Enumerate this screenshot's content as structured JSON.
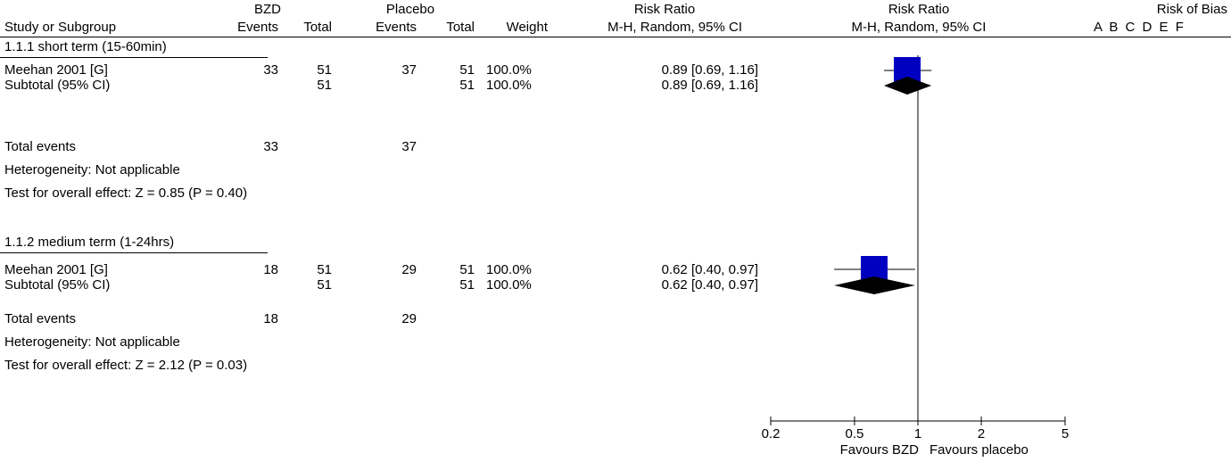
{
  "header": {
    "group_bzd": "BZD",
    "group_placebo": "Placebo",
    "rr_table_title": "Risk Ratio",
    "rr_plot_title": "Risk Ratio",
    "rob_title": "Risk of Bias",
    "col_study": "Study or Subgroup",
    "col_bzd_events": "Events",
    "col_bzd_total": "Total",
    "col_pl_events": "Events",
    "col_pl_total": "Total",
    "col_weight": "Weight",
    "col_rr_table": "M-H, Random, 95% CI",
    "col_rr_plot": "M-H, Random, 95% CI",
    "rob_letters": [
      "A",
      "B",
      "C",
      "D",
      "E",
      "F"
    ]
  },
  "subgroups": [
    {
      "title": "1.1.1 short term (15-60min)",
      "study": {
        "name": "Meehan 2001 [G]",
        "bzd_events": "33",
        "bzd_total": "51",
        "pl_events": "37",
        "pl_total": "51",
        "weight": "100.0%",
        "ci_text": "0.89 [0.69, 1.16]"
      },
      "subtotal": {
        "label": "Subtotal (95% CI)",
        "bzd_total": "51",
        "pl_total": "51",
        "weight": "100.0%",
        "ci_text": "0.89 [0.69, 1.16]"
      },
      "total_events": {
        "label": "Total events",
        "bzd": "33",
        "pl": "37"
      },
      "heterogeneity": "Heterogeneity: Not applicable",
      "overall_effect": "Test for overall effect: Z = 0.85 (P = 0.40)"
    },
    {
      "title": "1.1.2 medium term (1-24hrs)",
      "study": {
        "name": "Meehan 2001 [G]",
        "bzd_events": "18",
        "bzd_total": "51",
        "pl_events": "29",
        "pl_total": "51",
        "weight": "100.0%",
        "ci_text": "0.62 [0.40, 0.97]"
      },
      "subtotal": {
        "label": "Subtotal (95% CI)",
        "bzd_total": "51",
        "pl_total": "51",
        "weight": "100.0%",
        "ci_text": "0.62 [0.40, 0.97]"
      },
      "total_events": {
        "label": "Total events",
        "bzd": "18",
        "pl": "29"
      },
      "heterogeneity": "Heterogeneity: Not applicable",
      "overall_effect": "Test for overall effect: Z = 2.12 (P = 0.03)"
    }
  ],
  "axis": {
    "favours_left": "Favours BZD",
    "favours_right": "Favours placebo"
  },
  "colors": {
    "marker": "#0000c0",
    "diamond": "#000000",
    "line": "#000000"
  },
  "chart_data": {
    "type": "forest",
    "scale": "log",
    "xlim": [
      0.2,
      5
    ],
    "ticks": [
      0.2,
      0.5,
      1,
      2,
      5
    ],
    "tick_labels": [
      "0.2",
      "0.5",
      "1",
      "2",
      "5"
    ],
    "null_value": 1,
    "studies": [
      {
        "subgroup": "1.1.1 short term (15-60min)",
        "name": "Meehan 2001 [G]",
        "rr": 0.89,
        "lower": 0.69,
        "upper": 1.16,
        "weight": 100.0
      },
      {
        "subgroup": "1.1.2 medium term (1-24hrs)",
        "name": "Meehan 2001 [G]",
        "rr": 0.62,
        "lower": 0.4,
        "upper": 0.97,
        "weight": 100.0
      }
    ],
    "subtotals": [
      {
        "subgroup": "1.1.1 short term (15-60min)",
        "rr": 0.89,
        "lower": 0.69,
        "upper": 1.16
      },
      {
        "subgroup": "1.1.2 medium term (1-24hrs)",
        "rr": 0.62,
        "lower": 0.4,
        "upper": 0.97
      }
    ]
  }
}
